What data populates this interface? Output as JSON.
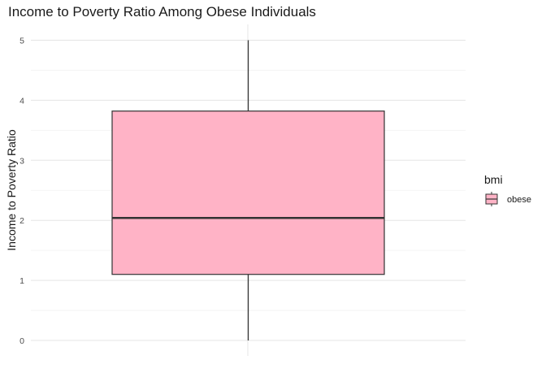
{
  "chart_data": {
    "type": "boxplot",
    "title": "Income to Poverty Ratio Among Obese Individuals",
    "xlabel": "",
    "ylabel": "Income to Poverty Ratio",
    "ylim": [
      0,
      5
    ],
    "y_ticks": [
      "0",
      "1",
      "2",
      "3",
      "4",
      "5"
    ],
    "grid": true,
    "legend": {
      "title": "bmi",
      "position": "right",
      "entries": [
        {
          "label": "obese",
          "color": "#FFB3C6"
        }
      ]
    },
    "series": [
      {
        "name": "obese",
        "color": "#FFB3C6",
        "min": 0,
        "q1": 1.1,
        "median": 2.04,
        "q3": 3.82,
        "max": 5
      }
    ]
  }
}
